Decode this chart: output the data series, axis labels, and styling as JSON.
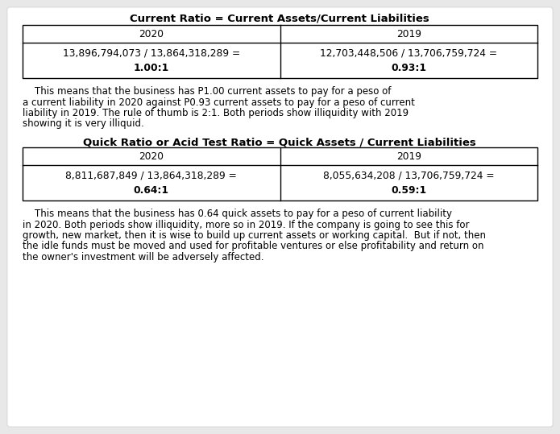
{
  "bg_color": "#e8e8e8",
  "card_color": "#ffffff",
  "title1": "Current Ratio = Current Assets/Current Liabilities",
  "title2": "Quick Ratio or Acid Test Ratio = Quick Assets / Current Liabilities",
  "table1_header": [
    "2020",
    "2019"
  ],
  "table1_row_col1_line1": "13,896,794,073 / 13,864,318,289 =",
  "table1_row_col1_line2": "1.00:1",
  "table1_row_col2_line1": "12,703,448,506 / 13,706,759,724 =",
  "table1_row_col2_line2": "0.93:1",
  "table2_header": [
    "2020",
    "2019"
  ],
  "table2_row_col1_line1": "8,811,687,849 / 13,864,318,289 =",
  "table2_row_col1_line2": "0.64:1",
  "table2_row_col2_line1": "8,055,634,208 / 13,706,759,724 =",
  "table2_row_col2_line2": "0.59:1",
  "para1_indent": "    This means that the business has P1.00 current assets to pay for a peso of",
  "para1_line2": "a current liability in 2020 against P0.93 current assets to pay for a peso of current",
  "para1_line3": "liability in 2019. The rule of thumb is 2:1. Both periods show illiquidity with 2019",
  "para1_line4": "showing it is very illiquid.",
  "para2_indent": "    This means that the business has 0.64 quick assets to pay for a peso of current liability",
  "para2_line2": "in 2020. Both periods show illiquidity, more so in 2019. If the company is going to see this for",
  "para2_line3": "growth, new market, then it is wise to build up current assets or working capital.  But if not, then",
  "para2_line4": "the idle funds must be moved and used for profitable ventures or else profitability and return on",
  "para2_line5": "the owner's investment will be adversely affected.",
  "fs_title": 9.5,
  "fs_body": 8.5,
  "fs_table": 8.8
}
